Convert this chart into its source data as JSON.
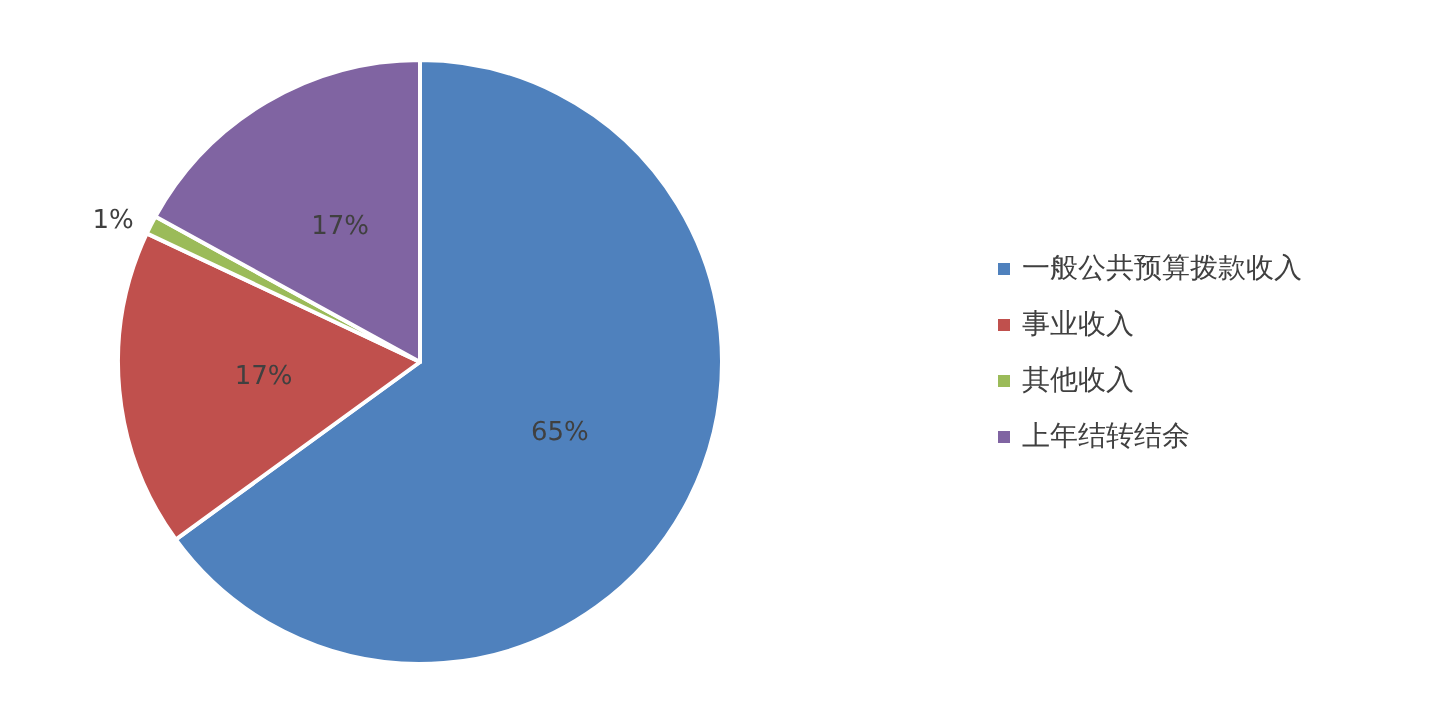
{
  "chart_data": {
    "type": "pie",
    "categories": [
      "一般公共预算拨款收入",
      "事业收入",
      "其他收入",
      "上年结转结余"
    ],
    "values": [
      65,
      17,
      1,
      17
    ],
    "colors": [
      "#4f81bd",
      "#c0504d",
      "#9bbb59",
      "#8064a2"
    ],
    "value_labels": [
      "65%",
      "17%",
      "1%",
      "17%"
    ],
    "legend": "right"
  }
}
